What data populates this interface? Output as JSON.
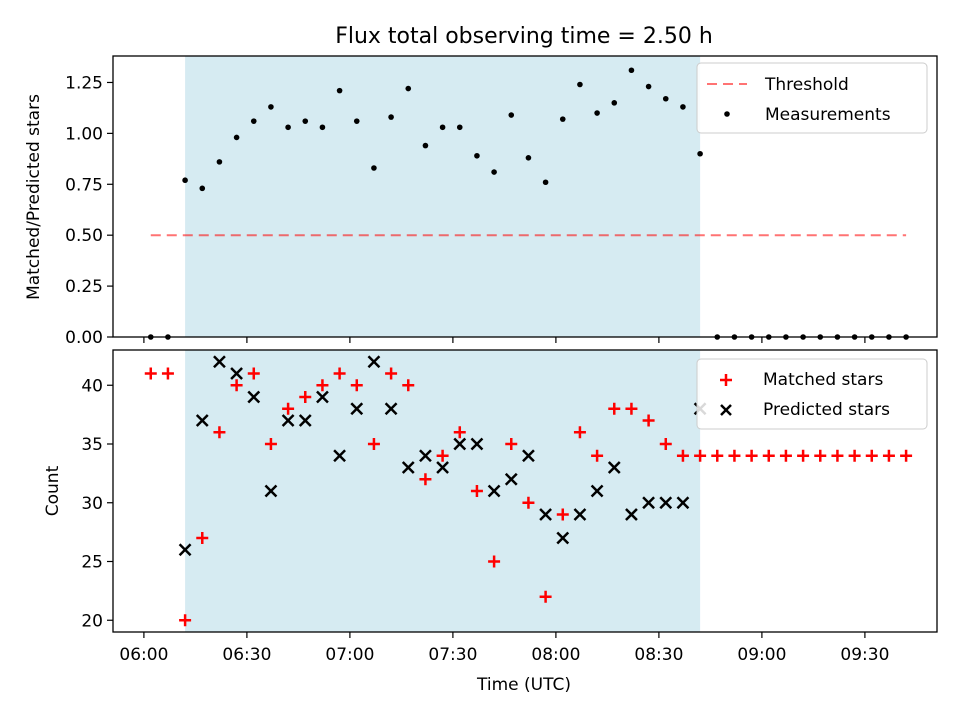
{
  "title": "Flux total observing time = 2.50 h",
  "colors": {
    "shade": "#add8e6",
    "threshold": "#ff0000",
    "measurement": "#000000",
    "matched": "#ff0000",
    "predicted": "#000000"
  },
  "chart_data": [
    {
      "type": "scatter",
      "ylabel": "Matched/Predicted stars",
      "xlabel": "",
      "ylim": [
        0,
        1.38
      ],
      "yticks": [
        "0.00",
        "0.25",
        "0.50",
        "0.75",
        "1.00",
        "1.25"
      ],
      "ytick_values": [
        0,
        0.25,
        0.5,
        0.75,
        1.0,
        1.25
      ],
      "shaded_span": [
        "06:12",
        "08:42"
      ],
      "threshold": {
        "name": "Threshold",
        "value": 0.5,
        "x_start": "06:02",
        "x_end": "09:42",
        "style": "dashed"
      },
      "series": [
        {
          "name": "Measurements",
          "marker": "dot",
          "x": [
            "06:02",
            "06:07",
            "06:12",
            "06:17",
            "06:22",
            "06:27",
            "06:32",
            "06:37",
            "06:42",
            "06:47",
            "06:52",
            "06:57",
            "07:02",
            "07:07",
            "07:12",
            "07:17",
            "07:22",
            "07:27",
            "07:32",
            "07:37",
            "07:42",
            "07:47",
            "07:52",
            "07:57",
            "08:02",
            "08:07",
            "08:12",
            "08:17",
            "08:22",
            "08:27",
            "08:32",
            "08:37",
            "08:42",
            "08:47",
            "08:52",
            "08:57",
            "09:02",
            "09:07",
            "09:12",
            "09:17",
            "09:22",
            "09:27",
            "09:32",
            "09:37",
            "09:42"
          ],
          "y": [
            0,
            0,
            0.77,
            0.73,
            0.86,
            0.98,
            1.06,
            1.13,
            1.03,
            1.06,
            1.03,
            1.21,
            1.06,
            0.83,
            1.08,
            1.22,
            0.94,
            1.03,
            1.03,
            0.89,
            0.81,
            1.09,
            0.88,
            0.76,
            1.07,
            1.24,
            1.1,
            1.15,
            1.31,
            1.23,
            1.17,
            1.13,
            0.9,
            0,
            0,
            0,
            0,
            0,
            0,
            0,
            0,
            0,
            0,
            0,
            0
          ]
        }
      ],
      "legend": {
        "position": "upper right",
        "entries": [
          "Threshold",
          "Measurements"
        ]
      }
    },
    {
      "type": "scatter",
      "ylabel": "Count",
      "xlabel": "Time (UTC)",
      "ylim": [
        19,
        43
      ],
      "yticks": [
        "20",
        "25",
        "30",
        "35",
        "40"
      ],
      "ytick_values": [
        20,
        25,
        30,
        35,
        40
      ],
      "xticks": [
        "06:00",
        "06:30",
        "07:00",
        "07:30",
        "08:00",
        "08:30",
        "09:00",
        "09:30"
      ],
      "xlim": [
        "05:51",
        "09:51"
      ],
      "shaded_span": [
        "06:12",
        "08:42"
      ],
      "series": [
        {
          "name": "Matched stars",
          "marker": "plus",
          "x": [
            "06:02",
            "06:07",
            "06:12",
            "06:17",
            "06:22",
            "06:27",
            "06:32",
            "06:37",
            "06:42",
            "06:47",
            "06:52",
            "06:57",
            "07:02",
            "07:07",
            "07:12",
            "07:17",
            "07:22",
            "07:27",
            "07:32",
            "07:37",
            "07:42",
            "07:47",
            "07:52",
            "07:57",
            "08:02",
            "08:07",
            "08:12",
            "08:17",
            "08:22",
            "08:27",
            "08:32",
            "08:37",
            "08:42",
            "08:47",
            "08:52",
            "08:57",
            "09:02",
            "09:07",
            "09:12",
            "09:17",
            "09:22",
            "09:27",
            "09:32",
            "09:37",
            "09:42"
          ],
          "y": [
            41,
            41,
            20,
            27,
            36,
            40,
            41,
            35,
            38,
            39,
            40,
            41,
            40,
            35,
            41,
            40,
            32,
            34,
            36,
            31,
            25,
            35,
            30,
            22,
            29,
            36,
            34,
            38,
            38,
            37,
            35,
            34,
            34,
            34,
            34,
            34,
            34,
            34,
            34,
            34,
            34,
            34,
            34,
            34,
            34
          ]
        },
        {
          "name": "Predicted stars",
          "marker": "x",
          "x": [
            "06:12",
            "06:17",
            "06:22",
            "06:27",
            "06:32",
            "06:37",
            "06:42",
            "06:47",
            "06:52",
            "06:57",
            "07:02",
            "07:07",
            "07:12",
            "07:17",
            "07:22",
            "07:27",
            "07:32",
            "07:37",
            "07:42",
            "07:47",
            "07:52",
            "07:57",
            "08:02",
            "08:07",
            "08:12",
            "08:17",
            "08:22",
            "08:27",
            "08:32",
            "08:37",
            "08:42"
          ],
          "y": [
            26,
            37,
            42,
            41,
            39,
            31,
            37,
            37,
            39,
            34,
            38,
            42,
            38,
            33,
            34,
            33,
            35,
            35,
            31,
            32,
            34,
            29,
            27,
            29,
            31,
            33,
            29,
            30,
            30,
            30,
            38
          ]
        }
      ],
      "legend": {
        "position": "upper right",
        "entries": [
          "Matched stars",
          "Predicted stars"
        ]
      }
    }
  ]
}
